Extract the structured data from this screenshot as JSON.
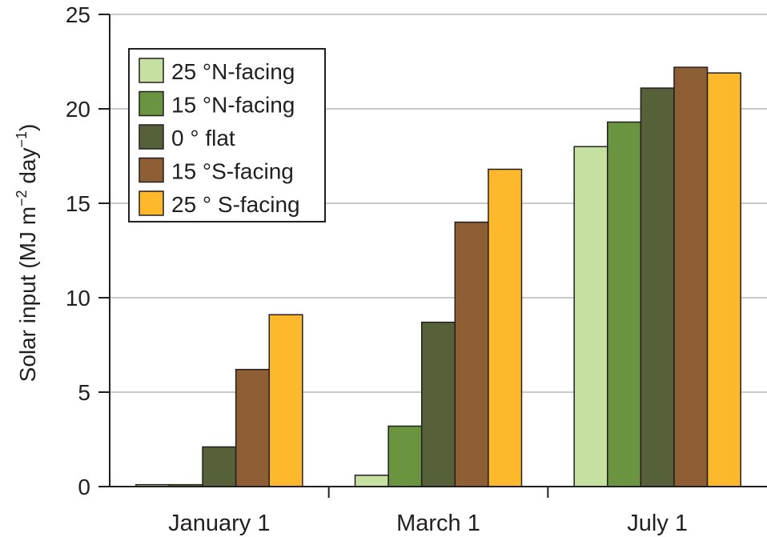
{
  "chart_data": {
    "type": "bar",
    "ylabel": {
      "prefix": "Solar input (MJ m",
      "exp1": "−2",
      "mid": " day",
      "exp2": "−1",
      "suffix": ")"
    },
    "ylim": [
      0,
      25
    ],
    "yticks": [
      "0",
      "5",
      "10",
      "15",
      "20",
      "25"
    ],
    "grid": true,
    "legend_position": "top-left",
    "categories": [
      "January 1",
      "March 1",
      "July 1"
    ],
    "series": [
      {
        "name": "25 °N-facing",
        "color": "#c5e0a0",
        "values": [
          0.1,
          0.6,
          18.0
        ]
      },
      {
        "name": "15 °N-facing",
        "color": "#6a9440",
        "values": [
          0.1,
          3.2,
          19.3
        ]
      },
      {
        "name": "0 °  flat",
        "color": "#56613a",
        "values": [
          2.1,
          8.7,
          21.1
        ]
      },
      {
        "name": "15 °S-facing",
        "color": "#8e5e35",
        "values": [
          6.2,
          14.0,
          22.2
        ]
      },
      {
        "name": "25 ° S-facing",
        "color": "#fdb92b",
        "values": [
          9.1,
          16.8,
          21.9
        ]
      }
    ]
  }
}
